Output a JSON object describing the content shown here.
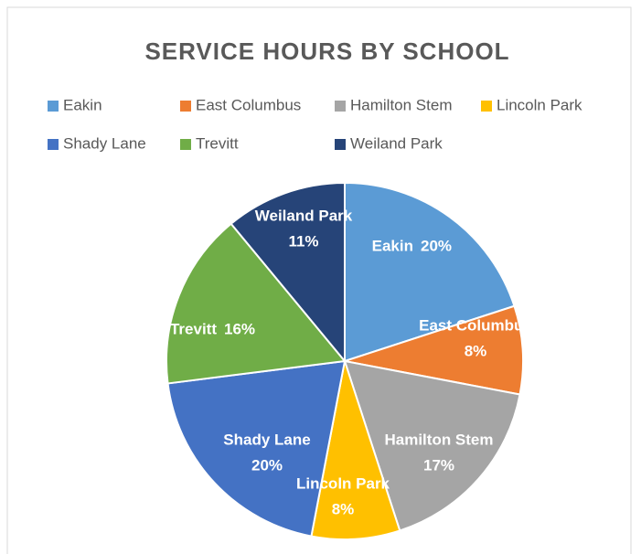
{
  "chart_data": {
    "type": "pie",
    "title": "SERVICE HOURS BY SCHOOL",
    "categories": [
      "Eakin",
      "East Columbus",
      "Hamilton Stem",
      "Lincoln Park",
      "Shady Lane",
      "Trevitt",
      "Weiland Park"
    ],
    "values": [
      20,
      8,
      17,
      8,
      20,
      16,
      11
    ],
    "value_labels": [
      "20%",
      "8%",
      "17%",
      "8%",
      "20%",
      "16%",
      "11%"
    ],
    "colors": [
      "#5b9bd5",
      "#ed7d31",
      "#a5a5a5",
      "#ffc000",
      "#4472c4",
      "#70ad47",
      "#264478"
    ],
    "legend": "top"
  }
}
